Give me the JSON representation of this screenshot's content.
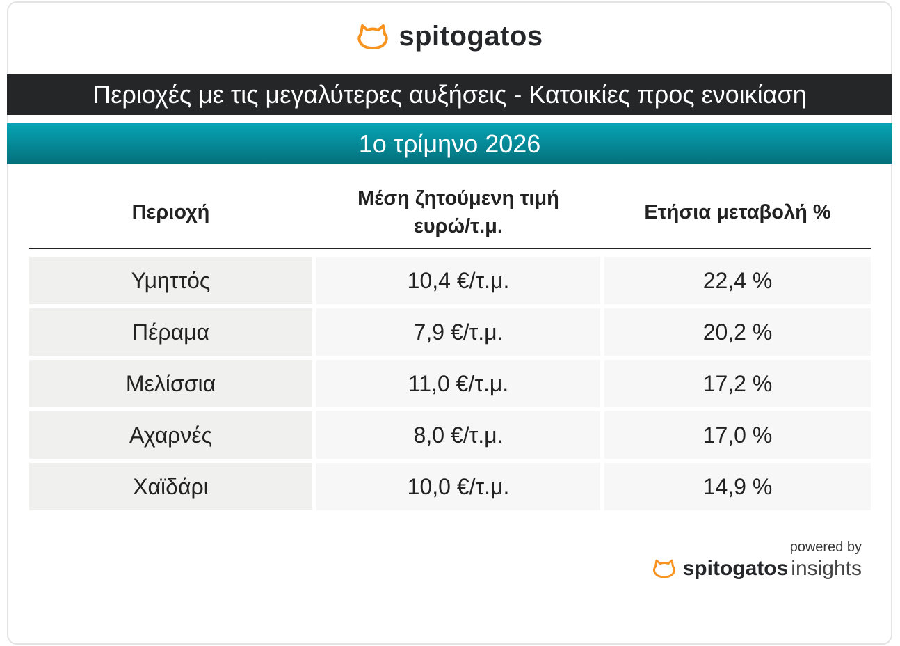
{
  "brand": {
    "name": "spitogatos",
    "accent": "#f7931e"
  },
  "title": "Περιοχές με τις μεγαλύτερες αυξήσεις - Κατοικίες προς ενοικίαση",
  "period": "1ο τρίμηνο 2026",
  "table": {
    "headers": [
      "Περιοχή",
      "Μέση ζητούμενη τιμή ευρώ/τ.μ.",
      "Ετήσια μεταβολή %"
    ],
    "rows": [
      [
        "Υμηττός",
        "10,4 €/τ.μ.",
        "22,4 %"
      ],
      [
        "Πέραμα",
        "7,9 €/τ.μ.",
        "20,2 %"
      ],
      [
        "Μελίσσια",
        "11,0 €/τ.μ.",
        "17,2 %"
      ],
      [
        "Αχαρνές",
        "8,0 €/τ.μ.",
        "17,0 %"
      ],
      [
        "Χαϊδάρι",
        "10,0 €/τ.μ.",
        "14,9 %"
      ]
    ]
  },
  "footer": {
    "powered_by": "powered by",
    "brand": "spitogatos",
    "product": "insights"
  }
}
